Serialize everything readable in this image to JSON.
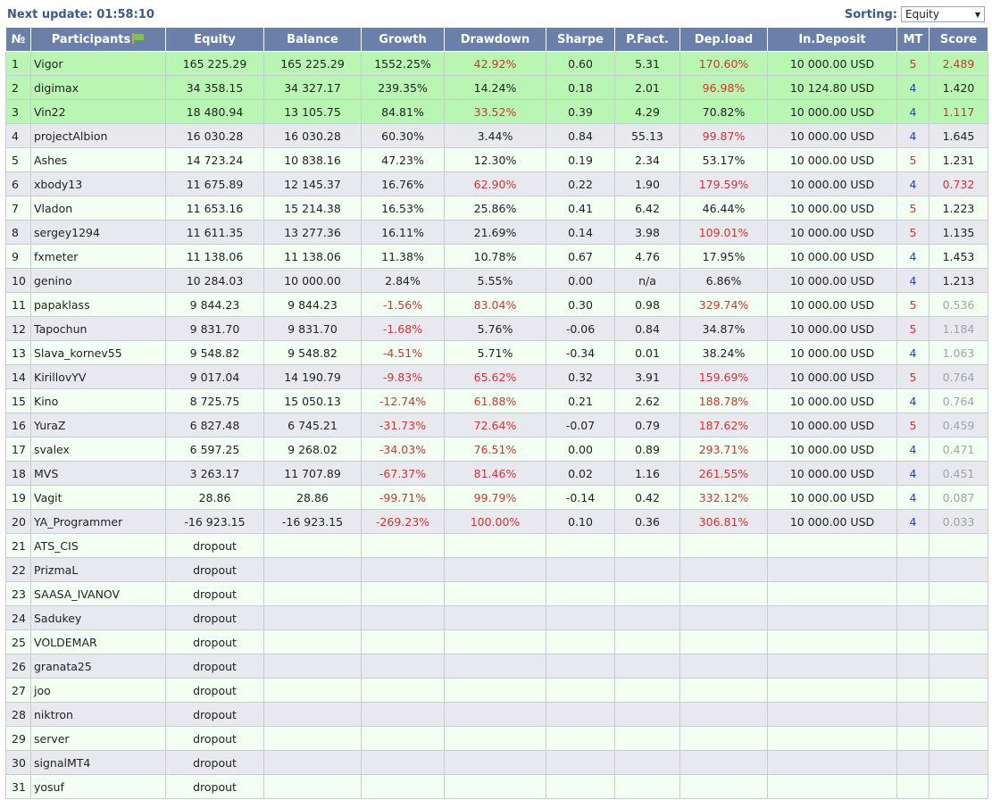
{
  "header": {
    "next_update_label": "Next update: 01:58:10",
    "sorting_label": "Sorting:",
    "sorting_value": "Equity"
  },
  "columns": [
    "№",
    "Participants",
    "Equity",
    "Balance",
    "Growth",
    "Drawdown",
    "Sharpe",
    "P.Fact.",
    "Dep.load",
    "In.Deposit",
    "MT",
    "Score"
  ],
  "icons": {
    "participants_header": "flag-icon",
    "sort_dropdown": "chevron-down-icon"
  },
  "colors": {
    "header_bg": "#6a80a8",
    "top_rows_bg": "#b9f6b3",
    "negative": "#d2342e",
    "mt_value": "#1e3fd6",
    "muted_score": "#a2a2a2"
  },
  "rows": [
    {
      "n": "1",
      "name": "Vigor",
      "equity": "165 225.29",
      "balance": "165 225.29",
      "growth": "1552.25%",
      "drawdown": "42.92%",
      "sharpe": "0.60",
      "pfact": "5.31",
      "depload": "170.60%",
      "deposit": "10 000.00 USD",
      "mt": "5",
      "score": "2.489",
      "hl": "green",
      "growth_c": "",
      "dd_c": "red",
      "dep_c": "red",
      "mt_c": "red",
      "score_c": "red"
    },
    {
      "n": "2",
      "name": "digimax",
      "equity": "34 358.15",
      "balance": "34 327.17",
      "growth": "239.35%",
      "drawdown": "14.24%",
      "sharpe": "0.18",
      "pfact": "2.01",
      "depload": "96.98%",
      "deposit": "10 124.80 USD",
      "mt": "4",
      "score": "1.420",
      "hl": "green",
      "growth_c": "",
      "dd_c": "",
      "dep_c": "red",
      "mt_c": "blue",
      "score_c": ""
    },
    {
      "n": "3",
      "name": "Vin22",
      "equity": "18 480.94",
      "balance": "13 105.75",
      "growth": "84.81%",
      "drawdown": "33.52%",
      "sharpe": "0.39",
      "pfact": "4.29",
      "depload": "70.82%",
      "deposit": "10 000.00 USD",
      "mt": "4",
      "score": "1.117",
      "hl": "green",
      "growth_c": "",
      "dd_c": "red",
      "dep_c": "",
      "mt_c": "blue",
      "score_c": "red"
    },
    {
      "n": "4",
      "name": "projectAlbion",
      "equity": "16 030.28",
      "balance": "16 030.28",
      "growth": "60.30%",
      "drawdown": "3.44%",
      "sharpe": "0.84",
      "pfact": "55.13",
      "depload": "99.87%",
      "deposit": "10 000.00 USD",
      "mt": "4",
      "score": "1.645",
      "hl": "even",
      "growth_c": "",
      "dd_c": "",
      "dep_c": "red",
      "mt_c": "blue",
      "score_c": ""
    },
    {
      "n": "5",
      "name": "Ashes",
      "equity": "14 723.24",
      "balance": "10 838.16",
      "growth": "47.23%",
      "drawdown": "12.30%",
      "sharpe": "0.19",
      "pfact": "2.34",
      "depload": "53.17%",
      "deposit": "10 000.00 USD",
      "mt": "5",
      "score": "1.231",
      "hl": "odd",
      "growth_c": "",
      "dd_c": "",
      "dep_c": "",
      "mt_c": "red",
      "score_c": ""
    },
    {
      "n": "6",
      "name": "xbody13",
      "equity": "11 675.89",
      "balance": "12 145.37",
      "growth": "16.76%",
      "drawdown": "62.90%",
      "sharpe": "0.22",
      "pfact": "1.90",
      "depload": "179.59%",
      "deposit": "10 000.00 USD",
      "mt": "4",
      "score": "0.732",
      "hl": "even",
      "growth_c": "",
      "dd_c": "red",
      "dep_c": "red",
      "mt_c": "blue",
      "score_c": "red"
    },
    {
      "n": "7",
      "name": "Vladon",
      "equity": "11 653.16",
      "balance": "15 214.38",
      "growth": "16.53%",
      "drawdown": "25.86%",
      "sharpe": "0.41",
      "pfact": "6.42",
      "depload": "46.44%",
      "deposit": "10 000.00 USD",
      "mt": "5",
      "score": "1.223",
      "hl": "odd",
      "growth_c": "",
      "dd_c": "",
      "dep_c": "",
      "mt_c": "red",
      "score_c": ""
    },
    {
      "n": "8",
      "name": "sergey1294",
      "equity": "11 611.35",
      "balance": "13 277.36",
      "growth": "16.11%",
      "drawdown": "21.69%",
      "sharpe": "0.14",
      "pfact": "3.98",
      "depload": "109.01%",
      "deposit": "10 000.00 USD",
      "mt": "5",
      "score": "1.135",
      "hl": "even",
      "growth_c": "",
      "dd_c": "",
      "dep_c": "red",
      "mt_c": "red",
      "score_c": ""
    },
    {
      "n": "9",
      "name": "fxmeter",
      "equity": "11 138.06",
      "balance": "11 138.06",
      "growth": "11.38%",
      "drawdown": "10.78%",
      "sharpe": "0.67",
      "pfact": "4.76",
      "depload": "17.95%",
      "deposit": "10 000.00 USD",
      "mt": "4",
      "score": "1.453",
      "hl": "odd",
      "growth_c": "",
      "dd_c": "",
      "dep_c": "",
      "mt_c": "blue",
      "score_c": ""
    },
    {
      "n": "10",
      "name": "genino",
      "equity": "10 284.03",
      "balance": "10 000.00",
      "growth": "2.84%",
      "drawdown": "5.55%",
      "sharpe": "0.00",
      "pfact": "n/a",
      "depload": "6.86%",
      "deposit": "10 000.00 USD",
      "mt": "4",
      "score": "1.213",
      "hl": "even",
      "growth_c": "",
      "dd_c": "",
      "dep_c": "",
      "mt_c": "blue",
      "score_c": ""
    },
    {
      "n": "11",
      "name": "papaklass",
      "equity": "9 844.23",
      "balance": "9 844.23",
      "growth": "-1.56%",
      "drawdown": "83.04%",
      "sharpe": "0.30",
      "pfact": "0.98",
      "depload": "329.74%",
      "deposit": "10 000.00 USD",
      "mt": "5",
      "score": "0.536",
      "hl": "odd",
      "growth_c": "red",
      "dd_c": "red",
      "dep_c": "red",
      "mt_c": "red",
      "score_c": "gray"
    },
    {
      "n": "12",
      "name": "Tapochun",
      "equity": "9 831.70",
      "balance": "9 831.70",
      "growth": "-1.68%",
      "drawdown": "5.76%",
      "sharpe": "-0.06",
      "pfact": "0.84",
      "depload": "34.87%",
      "deposit": "10 000.00 USD",
      "mt": "5",
      "score": "1.184",
      "hl": "even",
      "growth_c": "red",
      "dd_c": "",
      "dep_c": "",
      "mt_c": "red",
      "score_c": "gray"
    },
    {
      "n": "13",
      "name": "Slava_kornev55",
      "equity": "9 548.82",
      "balance": "9 548.82",
      "growth": "-4.51%",
      "drawdown": "5.71%",
      "sharpe": "-0.34",
      "pfact": "0.01",
      "depload": "38.24%",
      "deposit": "10 000.00 USD",
      "mt": "4",
      "score": "1.063",
      "hl": "odd",
      "growth_c": "red",
      "dd_c": "",
      "dep_c": "",
      "mt_c": "blue",
      "score_c": "gray"
    },
    {
      "n": "14",
      "name": "KirillovYV",
      "equity": "9 017.04",
      "balance": "14 190.79",
      "growth": "-9.83%",
      "drawdown": "65.62%",
      "sharpe": "0.32",
      "pfact": "3.91",
      "depload": "159.69%",
      "deposit": "10 000.00 USD",
      "mt": "5",
      "score": "0.764",
      "hl": "even",
      "growth_c": "red",
      "dd_c": "red",
      "dep_c": "red",
      "mt_c": "red",
      "score_c": "gray"
    },
    {
      "n": "15",
      "name": "Kino",
      "equity": "8 725.75",
      "balance": "15 050.13",
      "growth": "-12.74%",
      "drawdown": "61.88%",
      "sharpe": "0.21",
      "pfact": "2.62",
      "depload": "188.78%",
      "deposit": "10 000.00 USD",
      "mt": "4",
      "score": "0.764",
      "hl": "odd",
      "growth_c": "red",
      "dd_c": "red",
      "dep_c": "red",
      "mt_c": "blue",
      "score_c": "gray"
    },
    {
      "n": "16",
      "name": "YuraZ",
      "equity": "6 827.48",
      "balance": "6 745.21",
      "growth": "-31.73%",
      "drawdown": "72.64%",
      "sharpe": "-0.07",
      "pfact": "0.79",
      "depload": "187.62%",
      "deposit": "10 000.00 USD",
      "mt": "5",
      "score": "0.459",
      "hl": "even",
      "growth_c": "red",
      "dd_c": "red",
      "dep_c": "red",
      "mt_c": "red",
      "score_c": "gray"
    },
    {
      "n": "17",
      "name": "svalex",
      "equity": "6 597.25",
      "balance": "9 268.02",
      "growth": "-34.03%",
      "drawdown": "76.51%",
      "sharpe": "0.00",
      "pfact": "0.89",
      "depload": "293.71%",
      "deposit": "10 000.00 USD",
      "mt": "4",
      "score": "0.471",
      "hl": "odd",
      "growth_c": "red",
      "dd_c": "red",
      "dep_c": "red",
      "mt_c": "blue",
      "score_c": "gray"
    },
    {
      "n": "18",
      "name": "MVS",
      "equity": "3 263.17",
      "balance": "11 707.89",
      "growth": "-67.37%",
      "drawdown": "81.46%",
      "sharpe": "0.02",
      "pfact": "1.16",
      "depload": "261.55%",
      "deposit": "10 000.00 USD",
      "mt": "4",
      "score": "0.451",
      "hl": "even",
      "growth_c": "red",
      "dd_c": "red",
      "dep_c": "red",
      "mt_c": "blue",
      "score_c": "gray"
    },
    {
      "n": "19",
      "name": "Vagit",
      "equity": "28.86",
      "balance": "28.86",
      "growth": "-99.71%",
      "drawdown": "99.79%",
      "sharpe": "-0.14",
      "pfact": "0.42",
      "depload": "332.12%",
      "deposit": "10 000.00 USD",
      "mt": "4",
      "score": "0.087",
      "hl": "odd",
      "growth_c": "red",
      "dd_c": "red",
      "dep_c": "red",
      "mt_c": "blue",
      "score_c": "gray"
    },
    {
      "n": "20",
      "name": "YA_Programmer",
      "equity": "-16 923.15",
      "balance": "-16 923.15",
      "growth": "-269.23%",
      "drawdown": "100.00%",
      "sharpe": "0.10",
      "pfact": "0.36",
      "depload": "306.81%",
      "deposit": "10 000.00 USD",
      "mt": "4",
      "score": "0.033",
      "hl": "even",
      "growth_c": "red",
      "dd_c": "red",
      "dep_c": "red",
      "mt_c": "blue",
      "score_c": "gray"
    },
    {
      "n": "21",
      "name": "ATS_CIS",
      "equity": "dropout",
      "balance": "",
      "growth": "",
      "drawdown": "",
      "sharpe": "",
      "pfact": "",
      "depload": "",
      "deposit": "",
      "mt": "",
      "score": "",
      "hl": "odd"
    },
    {
      "n": "22",
      "name": "PrizmaL",
      "equity": "dropout",
      "balance": "",
      "growth": "",
      "drawdown": "",
      "sharpe": "",
      "pfact": "",
      "depload": "",
      "deposit": "",
      "mt": "",
      "score": "",
      "hl": "even"
    },
    {
      "n": "23",
      "name": "SAASA_IVANOV",
      "equity": "dropout",
      "balance": "",
      "growth": "",
      "drawdown": "",
      "sharpe": "",
      "pfact": "",
      "depload": "",
      "deposit": "",
      "mt": "",
      "score": "",
      "hl": "odd"
    },
    {
      "n": "24",
      "name": "Sadukey",
      "equity": "dropout",
      "balance": "",
      "growth": "",
      "drawdown": "",
      "sharpe": "",
      "pfact": "",
      "depload": "",
      "deposit": "",
      "mt": "",
      "score": "",
      "hl": "even"
    },
    {
      "n": "25",
      "name": "VOLDEMAR",
      "equity": "dropout",
      "balance": "",
      "growth": "",
      "drawdown": "",
      "sharpe": "",
      "pfact": "",
      "depload": "",
      "deposit": "",
      "mt": "",
      "score": "",
      "hl": "odd"
    },
    {
      "n": "26",
      "name": "granata25",
      "equity": "dropout",
      "balance": "",
      "growth": "",
      "drawdown": "",
      "sharpe": "",
      "pfact": "",
      "depload": "",
      "deposit": "",
      "mt": "",
      "score": "",
      "hl": "even"
    },
    {
      "n": "27",
      "name": "joo",
      "equity": "dropout",
      "balance": "",
      "growth": "",
      "drawdown": "",
      "sharpe": "",
      "pfact": "",
      "depload": "",
      "deposit": "",
      "mt": "",
      "score": "",
      "hl": "odd"
    },
    {
      "n": "28",
      "name": "niktron",
      "equity": "dropout",
      "balance": "",
      "growth": "",
      "drawdown": "",
      "sharpe": "",
      "pfact": "",
      "depload": "",
      "deposit": "",
      "mt": "",
      "score": "",
      "hl": "even"
    },
    {
      "n": "29",
      "name": "server",
      "equity": "dropout",
      "balance": "",
      "growth": "",
      "drawdown": "",
      "sharpe": "",
      "pfact": "",
      "depload": "",
      "deposit": "",
      "mt": "",
      "score": "",
      "hl": "odd"
    },
    {
      "n": "30",
      "name": "signalMT4",
      "equity": "dropout",
      "balance": "",
      "growth": "",
      "drawdown": "",
      "sharpe": "",
      "pfact": "",
      "depload": "",
      "deposit": "",
      "mt": "",
      "score": "",
      "hl": "even"
    },
    {
      "n": "31",
      "name": "yosuf",
      "equity": "dropout",
      "balance": "",
      "growth": "",
      "drawdown": "",
      "sharpe": "",
      "pfact": "",
      "depload": "",
      "deposit": "",
      "mt": "",
      "score": "",
      "hl": "odd"
    }
  ]
}
